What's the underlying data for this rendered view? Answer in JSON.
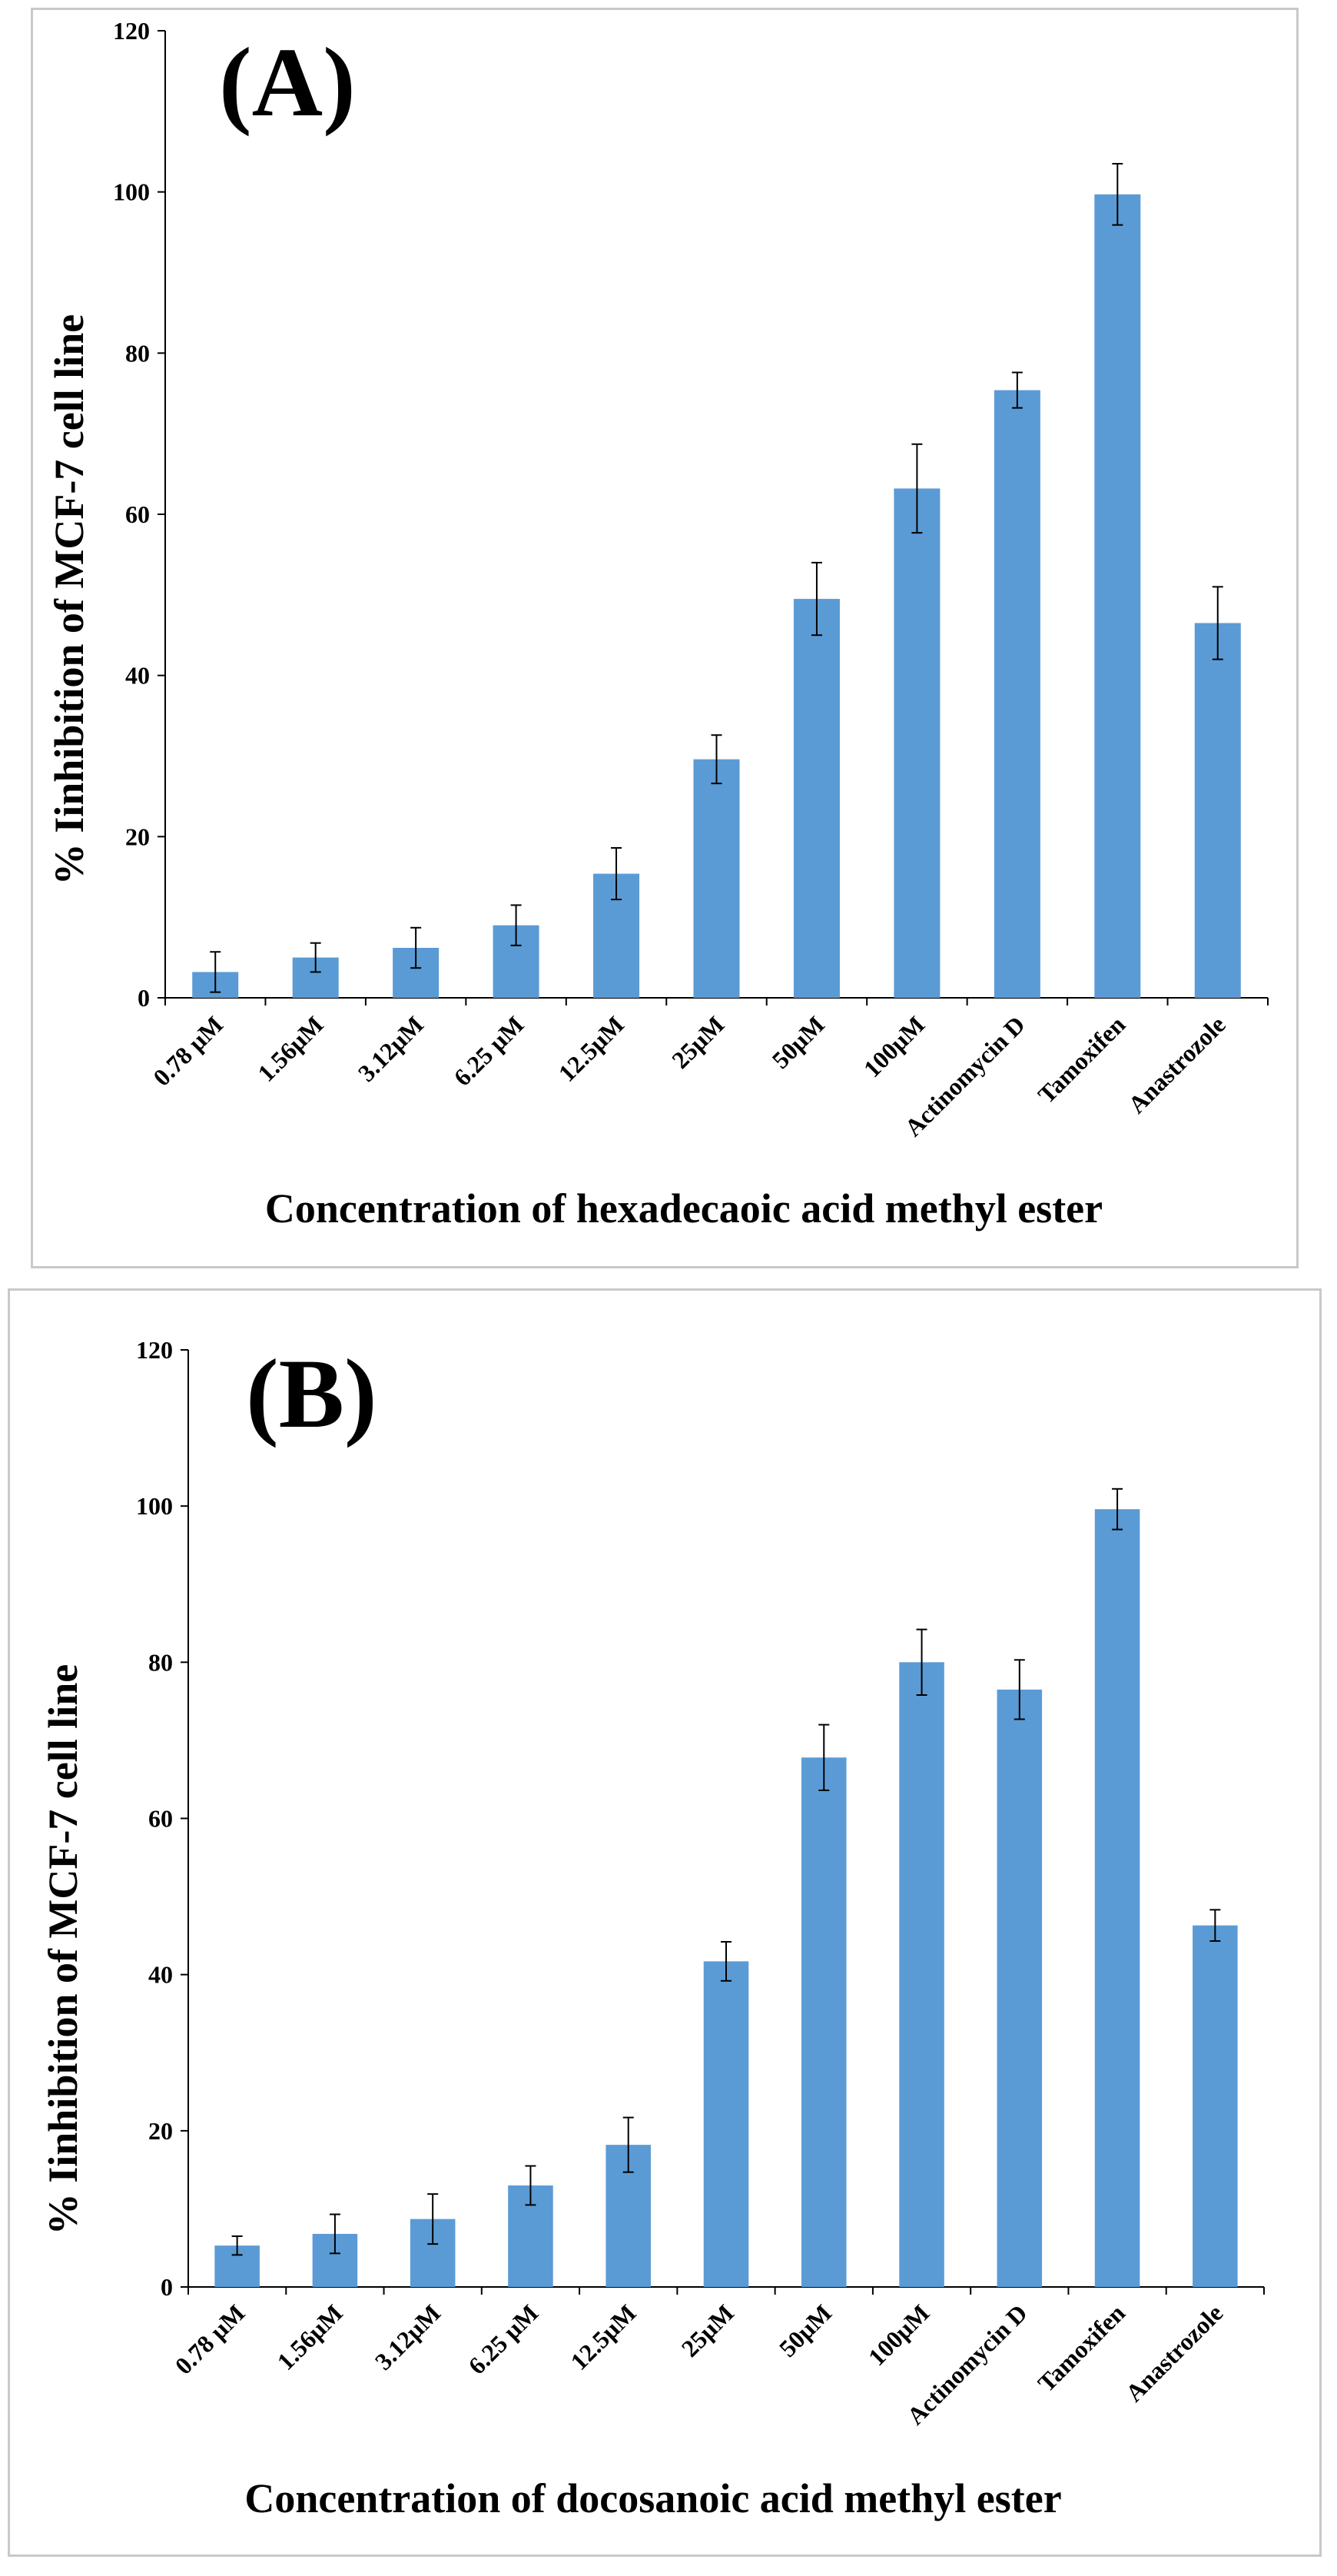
{
  "chart_data": [
    {
      "type": "bar",
      "panel_label": "(A)",
      "categories": [
        "0.78 µM",
        "1.56µM",
        "3.12µM",
        "6.25 µM",
        "12.5µM",
        "25µM",
        "50µM",
        "100µM",
        "Actinomycin D",
        "Tamoxifen",
        "Anastrozole"
      ],
      "values": [
        3.2,
        5.0,
        6.2,
        9.0,
        15.4,
        29.6,
        49.5,
        63.2,
        75.4,
        99.7,
        46.5
      ],
      "errors": [
        2.5,
        1.8,
        2.5,
        2.5,
        3.2,
        3.0,
        4.5,
        5.5,
        2.2,
        3.8,
        4.5
      ],
      "xlabel": "Concentration of hexadecaoic acid methyl ester",
      "ylabel": "% Iinhibition of MCF-7 cell line",
      "ylim": [
        0,
        120
      ],
      "yticks": [
        0,
        20,
        40,
        60,
        80,
        100,
        120
      ],
      "bar_color": "#5b9bd5",
      "grid": false
    },
    {
      "type": "bar",
      "panel_label": "(B)",
      "categories": [
        "0.78 µM",
        "1.56µM",
        "3.12µM",
        "6.25 µM",
        "12.5µM",
        "25µM",
        "50µM",
        "100µM",
        "Actinomycin D",
        "Tamoxifen",
        "Anastrozole"
      ],
      "values": [
        5.3,
        6.8,
        8.7,
        13.0,
        18.2,
        41.7,
        67.8,
        80.0,
        76.5,
        99.6,
        46.3
      ],
      "errors": [
        1.2,
        2.5,
        3.2,
        2.5,
        3.5,
        2.5,
        4.2,
        4.2,
        3.8,
        2.6,
        2.0
      ],
      "xlabel": "Concentration of docosanoic acid methyl ester",
      "ylabel": "% Iinhibition of MCF-7 cell line",
      "ylim": [
        0,
        120
      ],
      "yticks": [
        0,
        20,
        40,
        60,
        80,
        100,
        120
      ],
      "bar_color": "#5b9bd5",
      "grid": false
    }
  ]
}
